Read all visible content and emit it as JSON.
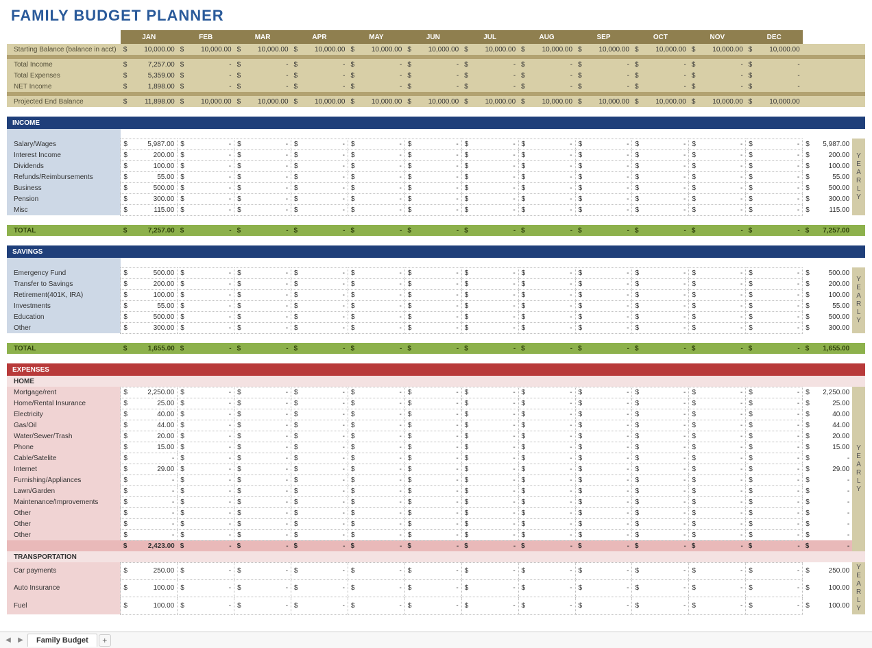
{
  "title": "FAMILY BUDGET PLANNER",
  "tab_name": "Family Budget",
  "months": [
    "JAN",
    "FEB",
    "MAR",
    "APR",
    "MAY",
    "JUN",
    "JUL",
    "AUG",
    "SEP",
    "OCT",
    "NOV",
    "DEC"
  ],
  "colors": {
    "title": "#2a5a9a",
    "month_header_bg": "#8f7f4f",
    "summary_bg": "#d8cfa7",
    "summary_divider": "#b2a271",
    "section_blue": "#1f3f7a",
    "section_red": "#b83a3a",
    "total_green": "#8db14c",
    "income_body": "#cdd8e6",
    "expense_body": "#f0d3d3",
    "expense_subtotal": "#e9b9b9",
    "year_band": "#d3cca8"
  },
  "summary": {
    "rows": [
      {
        "label": "Starting Balance (balance in acct)",
        "vals": [
          10000,
          10000,
          10000,
          10000,
          10000,
          10000,
          10000,
          10000,
          10000,
          10000,
          10000,
          10000
        ]
      },
      {
        "label": "Total Income",
        "vals": [
          7257,
          null,
          null,
          null,
          null,
          null,
          null,
          null,
          null,
          null,
          null,
          null
        ]
      },
      {
        "label": "Total Expenses",
        "vals": [
          5359,
          null,
          null,
          null,
          null,
          null,
          null,
          null,
          null,
          null,
          null,
          null
        ]
      },
      {
        "label": "NET Income",
        "vals": [
          1898,
          null,
          null,
          null,
          null,
          null,
          null,
          null,
          null,
          null,
          null,
          null
        ]
      },
      {
        "label": "Projected End Balance",
        "vals": [
          11898,
          10000,
          10000,
          10000,
          10000,
          10000,
          10000,
          10000,
          10000,
          10000,
          10000,
          10000
        ]
      }
    ]
  },
  "income": {
    "title": "INCOME",
    "rows": [
      {
        "label": "Salary/Wages",
        "vals": [
          5987,
          null,
          null,
          null,
          null,
          null,
          null,
          null,
          null,
          null,
          null,
          null
        ],
        "year": 5987
      },
      {
        "label": "Interest Income",
        "vals": [
          200,
          null,
          null,
          null,
          null,
          null,
          null,
          null,
          null,
          null,
          null,
          null
        ],
        "year": 200
      },
      {
        "label": "Dividends",
        "vals": [
          100,
          null,
          null,
          null,
          null,
          null,
          null,
          null,
          null,
          null,
          null,
          null
        ],
        "year": 100
      },
      {
        "label": "Refunds/Reimbursements",
        "vals": [
          55,
          null,
          null,
          null,
          null,
          null,
          null,
          null,
          null,
          null,
          null,
          null
        ],
        "year": 55
      },
      {
        "label": "Business",
        "vals": [
          500,
          null,
          null,
          null,
          null,
          null,
          null,
          null,
          null,
          null,
          null,
          null
        ],
        "year": 500
      },
      {
        "label": "Pension",
        "vals": [
          300,
          null,
          null,
          null,
          null,
          null,
          null,
          null,
          null,
          null,
          null,
          null
        ],
        "year": 300
      },
      {
        "label": "Misc",
        "vals": [
          115,
          null,
          null,
          null,
          null,
          null,
          null,
          null,
          null,
          null,
          null,
          null
        ],
        "year": 115
      }
    ],
    "total": {
      "label": "TOTAL",
      "vals": [
        7257,
        null,
        null,
        null,
        null,
        null,
        null,
        null,
        null,
        null,
        null,
        null
      ],
      "year": 7257
    }
  },
  "savings": {
    "title": "SAVINGS",
    "rows": [
      {
        "label": "Emergency Fund",
        "vals": [
          500,
          null,
          null,
          null,
          null,
          null,
          null,
          null,
          null,
          null,
          null,
          null
        ],
        "year": 500
      },
      {
        "label": "Transfer to Savings",
        "vals": [
          200,
          null,
          null,
          null,
          null,
          null,
          null,
          null,
          null,
          null,
          null,
          null
        ],
        "year": 200
      },
      {
        "label": "Retirement(401K, IRA)",
        "vals": [
          100,
          null,
          null,
          null,
          null,
          null,
          null,
          null,
          null,
          null,
          null,
          null
        ],
        "year": 100
      },
      {
        "label": "Investments",
        "vals": [
          55,
          null,
          null,
          null,
          null,
          null,
          null,
          null,
          null,
          null,
          null,
          null
        ],
        "year": 55
      },
      {
        "label": "Education",
        "vals": [
          500,
          null,
          null,
          null,
          null,
          null,
          null,
          null,
          null,
          null,
          null,
          null
        ],
        "year": 500
      },
      {
        "label": "Other",
        "vals": [
          300,
          null,
          null,
          null,
          null,
          null,
          null,
          null,
          null,
          null,
          null,
          null
        ],
        "year": 300
      }
    ],
    "total": {
      "label": "TOTAL",
      "vals": [
        1655,
        null,
        null,
        null,
        null,
        null,
        null,
        null,
        null,
        null,
        null,
        null
      ],
      "year": 1655
    }
  },
  "expenses": {
    "title": "EXPENSES",
    "groups": [
      {
        "name": "HOME",
        "rows": [
          {
            "label": "Mortgage/rent",
            "vals": [
              2250,
              null,
              null,
              null,
              null,
              null,
              null,
              null,
              null,
              null,
              null,
              null
            ],
            "year": 2250
          },
          {
            "label": "Home/Rental Insurance",
            "vals": [
              25,
              null,
              null,
              null,
              null,
              null,
              null,
              null,
              null,
              null,
              null,
              null
            ],
            "year": 25
          },
          {
            "label": "Electricity",
            "vals": [
              40,
              null,
              null,
              null,
              null,
              null,
              null,
              null,
              null,
              null,
              null,
              null
            ],
            "year": 40
          },
          {
            "label": "Gas/Oil",
            "vals": [
              44,
              null,
              null,
              null,
              null,
              null,
              null,
              null,
              null,
              null,
              null,
              null
            ],
            "year": 44
          },
          {
            "label": "Water/Sewer/Trash",
            "vals": [
              20,
              null,
              null,
              null,
              null,
              null,
              null,
              null,
              null,
              null,
              null,
              null
            ],
            "year": 20
          },
          {
            "label": "Phone",
            "vals": [
              15,
              null,
              null,
              null,
              null,
              null,
              null,
              null,
              null,
              null,
              null,
              null
            ],
            "year": 15
          },
          {
            "label": "Cable/Satelite",
            "vals": [
              null,
              null,
              null,
              null,
              null,
              null,
              null,
              null,
              null,
              null,
              null,
              null
            ],
            "year": null
          },
          {
            "label": "Internet",
            "vals": [
              29,
              null,
              null,
              null,
              null,
              null,
              null,
              null,
              null,
              null,
              null,
              null
            ],
            "year": 29
          },
          {
            "label": "Furnishing/Appliances",
            "vals": [
              null,
              null,
              null,
              null,
              null,
              null,
              null,
              null,
              null,
              null,
              null,
              null
            ],
            "year": null
          },
          {
            "label": "Lawn/Garden",
            "vals": [
              null,
              null,
              null,
              null,
              null,
              null,
              null,
              null,
              null,
              null,
              null,
              null
            ],
            "year": null
          },
          {
            "label": "Maintenance/Improvements",
            "vals": [
              null,
              null,
              null,
              null,
              null,
              null,
              null,
              null,
              null,
              null,
              null,
              null
            ],
            "year": null
          },
          {
            "label": "Other",
            "vals": [
              null,
              null,
              null,
              null,
              null,
              null,
              null,
              null,
              null,
              null,
              null,
              null
            ],
            "year": null
          },
          {
            "label": "Other",
            "vals": [
              null,
              null,
              null,
              null,
              null,
              null,
              null,
              null,
              null,
              null,
              null,
              null
            ],
            "year": null
          },
          {
            "label": "Other",
            "vals": [
              null,
              null,
              null,
              null,
              null,
              null,
              null,
              null,
              null,
              null,
              null,
              null
            ],
            "year": null
          }
        ],
        "subtotal": {
          "vals": [
            2423,
            null,
            null,
            null,
            null,
            null,
            null,
            null,
            null,
            null,
            null,
            null
          ],
          "year": null
        }
      },
      {
        "name": "TRANSPORTATION",
        "rows": [
          {
            "label": "Car payments",
            "vals": [
              250,
              null,
              null,
              null,
              null,
              null,
              null,
              null,
              null,
              null,
              null,
              null
            ],
            "year": 250
          },
          {
            "label": "Auto Insurance",
            "vals": [
              100,
              null,
              null,
              null,
              null,
              null,
              null,
              null,
              null,
              null,
              null,
              null
            ],
            "year": 100
          },
          {
            "label": "Fuel",
            "vals": [
              100,
              null,
              null,
              null,
              null,
              null,
              null,
              null,
              null,
              null,
              null,
              null
            ],
            "year": 100
          }
        ]
      }
    ]
  },
  "yearly_label": "YEARLY"
}
